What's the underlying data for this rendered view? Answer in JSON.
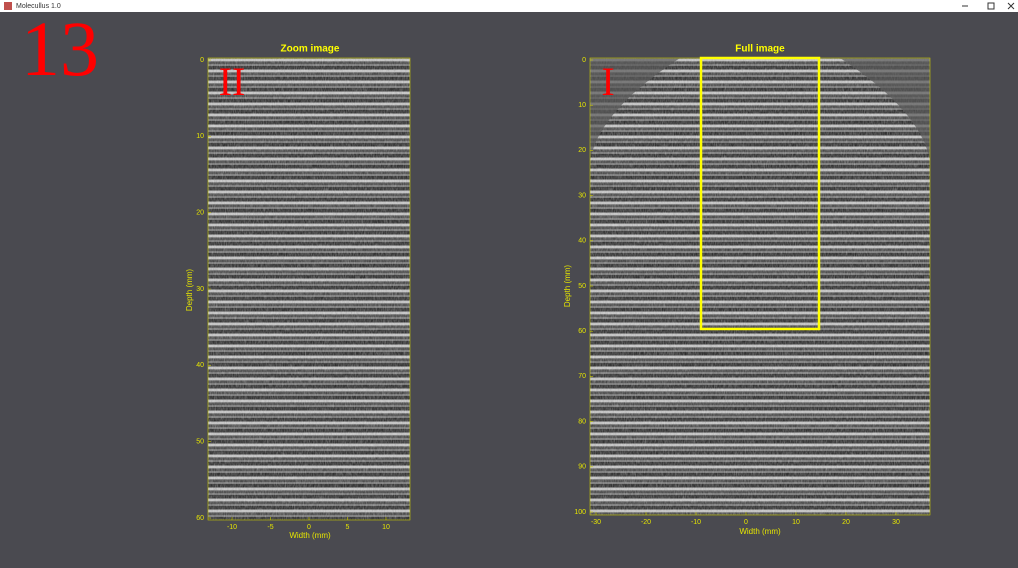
{
  "window": {
    "title": "Molecullus 1.0"
  },
  "page_number": "13",
  "zoom": {
    "title": "Zoom image",
    "marker": "II",
    "xlabel": "Width (mm)",
    "ylabel": "Depth (mm)",
    "xticks": [
      -10,
      -5,
      0,
      5,
      10
    ],
    "yticks": [
      0,
      10,
      20,
      30,
      40,
      50,
      60
    ]
  },
  "full": {
    "title": "Full image",
    "marker": "I",
    "xlabel": "Width (mm)",
    "ylabel": "Depth (mm)",
    "xticks": [
      -30,
      -20,
      -10,
      0,
      10,
      20,
      30
    ],
    "yticks": [
      0,
      10,
      20,
      30,
      40,
      50,
      60,
      70,
      80,
      90,
      100
    ]
  }
}
